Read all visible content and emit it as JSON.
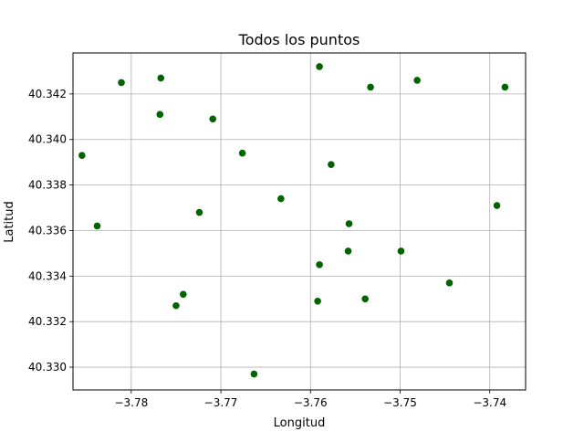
{
  "chart_data": {
    "type": "scatter",
    "title": "Todos los puntos",
    "xlabel": "Longitud",
    "ylabel": "Latitud",
    "xlim": [
      -3.7865,
      -3.736
    ],
    "ylim": [
      40.329,
      40.3438
    ],
    "xticks": [
      -3.78,
      -3.77,
      -3.76,
      -3.75,
      -3.74
    ],
    "xtick_labels": [
      "−3.78",
      "−3.77",
      "−3.76",
      "−3.75",
      "−3.74"
    ],
    "yticks": [
      40.33,
      40.332,
      40.334,
      40.336,
      40.338,
      40.34,
      40.342
    ],
    "ytick_labels": [
      "40.330",
      "40.332",
      "40.334",
      "40.336",
      "40.338",
      "40.340",
      "40.342"
    ],
    "grid": true,
    "marker_color": "#006400",
    "points": [
      {
        "x": -3.7855,
        "y": 40.3393
      },
      {
        "x": -3.7838,
        "y": 40.3362
      },
      {
        "x": -3.7811,
        "y": 40.3425
      },
      {
        "x": -3.7767,
        "y": 40.3427
      },
      {
        "x": -3.7768,
        "y": 40.3411
      },
      {
        "x": -3.7709,
        "y": 40.3409
      },
      {
        "x": -3.7676,
        "y": 40.3394
      },
      {
        "x": -3.7724,
        "y": 40.3368
      },
      {
        "x": -3.7742,
        "y": 40.3332
      },
      {
        "x": -3.775,
        "y": 40.3327
      },
      {
        "x": -3.7663,
        "y": 40.3297
      },
      {
        "x": -3.7633,
        "y": 40.3374
      },
      {
        "x": -3.759,
        "y": 40.3432
      },
      {
        "x": -3.7577,
        "y": 40.3389
      },
      {
        "x": -3.7557,
        "y": 40.3363
      },
      {
        "x": -3.7558,
        "y": 40.3351
      },
      {
        "x": -3.759,
        "y": 40.3345
      },
      {
        "x": -3.7592,
        "y": 40.3329
      },
      {
        "x": -3.7539,
        "y": 40.333
      },
      {
        "x": -3.7533,
        "y": 40.3423
      },
      {
        "x": -3.7481,
        "y": 40.3426
      },
      {
        "x": -3.7499,
        "y": 40.3351
      },
      {
        "x": -3.7445,
        "y": 40.3337
      },
      {
        "x": -3.7392,
        "y": 40.3371
      },
      {
        "x": -3.7383,
        "y": 40.3423
      }
    ]
  }
}
